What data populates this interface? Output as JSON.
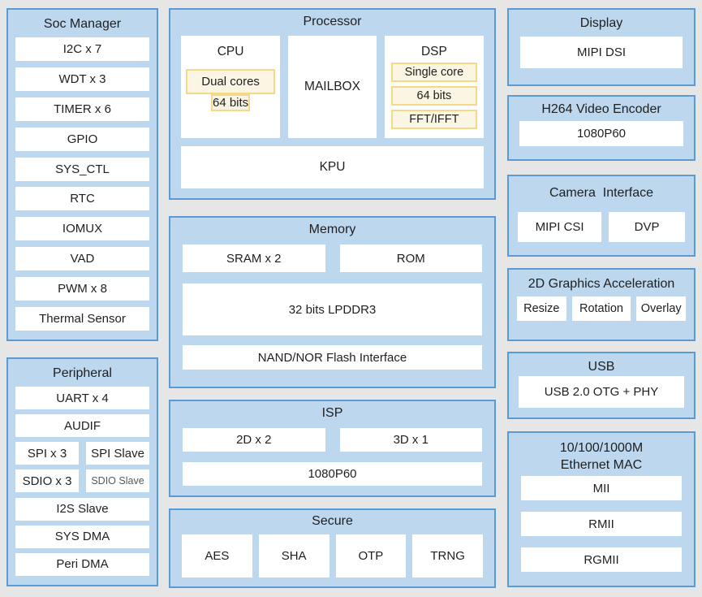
{
  "colors": {
    "page_bg": "#e7e6e6",
    "block_fill": "#bdd7ee",
    "block_border": "#5b9bd5",
    "item_fill": "#ffffff",
    "highlight_fill": "#fbf5e3",
    "highlight_border": "#f6d988",
    "text": "#1f1f1f",
    "muted_text": "#595959"
  },
  "soc_manager": {
    "title": "Soc Manager",
    "items": [
      "I2C x 7",
      "WDT x 3",
      "TIMER x 6",
      "GPIO",
      "SYS_CTL",
      "RTC",
      "IOMUX",
      "VAD",
      "PWM x 8",
      "Thermal Sensor"
    ]
  },
  "peripheral": {
    "title": "Peripheral",
    "uart": "UART x 4",
    "audif": "AUDIF",
    "spi": "SPI x 3",
    "spi_slave": "SPI Slave",
    "sdio": "SDIO x 3",
    "sdio_slave": "SDIO Slave",
    "i2s_slave": "I2S Slave",
    "sys_dma": "SYS DMA",
    "peri_dma": "Peri DMA"
  },
  "processor": {
    "title": "Processor",
    "cpu": {
      "label": "CPU",
      "features": [
        "Dual cores",
        "64 bits"
      ]
    },
    "mailbox": "MAILBOX",
    "dsp": {
      "label": "DSP",
      "features": [
        "Single core",
        "64 bits",
        "FFT/IFFT"
      ]
    },
    "kpu": "KPU"
  },
  "memory": {
    "title": "Memory",
    "sram": "SRAM x 2",
    "rom": "ROM",
    "lpddr": "32 bits LPDDR3",
    "flash": "NAND/NOR Flash Interface"
  },
  "isp": {
    "title": "ISP",
    "d2": "2D x 2",
    "d3": "3D x 1",
    "resolution": "1080P60"
  },
  "secure": {
    "title": "Secure",
    "items": [
      "AES",
      "SHA",
      "OTP",
      "TRNG"
    ]
  },
  "display": {
    "title": "Display",
    "interface": "MIPI DSI"
  },
  "h264": {
    "title": "H264 Video Encoder",
    "resolution": "1080P60"
  },
  "camera": {
    "title": "Camera  Interface",
    "csi": "MIPI CSI",
    "dvp": "DVP"
  },
  "graphics_2d": {
    "title": "2D Graphics Acceleration",
    "items": [
      "Resize",
      "Rotation",
      "Overlay"
    ]
  },
  "usb": {
    "title": "USB",
    "controller": "USB 2.0 OTG + PHY"
  },
  "ethernet": {
    "title_line1": "10/100/1000M",
    "title_line2": "Ethernet MAC",
    "items": [
      "MII",
      "RMII",
      "RGMII"
    ]
  }
}
